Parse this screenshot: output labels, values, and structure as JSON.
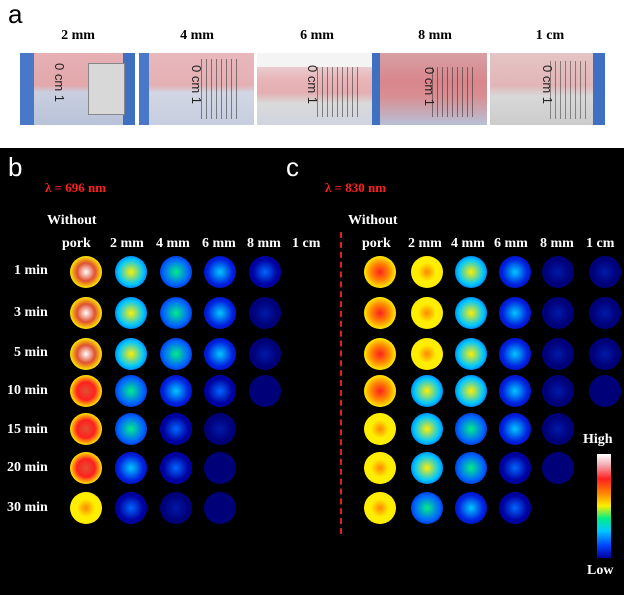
{
  "panel_a": {
    "letter": "a",
    "photos": [
      {
        "label": "2 mm",
        "ruler": "0 cm 1"
      },
      {
        "label": "4 mm",
        "ruler": "0 cm 1"
      },
      {
        "label": "6 mm",
        "ruler": "0 cm 1"
      },
      {
        "label": "8 mm",
        "ruler": "0 cm 1"
      },
      {
        "label": "1 cm",
        "ruler": "0 cm 1"
      }
    ]
  },
  "panel_b": {
    "letter": "b",
    "wavelength": "λ = 696 nm",
    "header_without": "Without",
    "columns": [
      "pork",
      "2 mm",
      "4 mm",
      "6 mm",
      "8 mm",
      "1 cm"
    ]
  },
  "panel_c": {
    "letter": "c",
    "wavelength": "λ = 830 nm",
    "header_without": "Without",
    "columns": [
      "pork",
      "2 mm",
      "4 mm",
      "6 mm",
      "8 mm",
      "1 cm"
    ]
  },
  "time_points": [
    "1 min",
    "3 min",
    "5 min",
    "10 min",
    "15 min",
    "20 min",
    "30 min"
  ],
  "legend": {
    "high": "High",
    "low": "Low"
  },
  "colors": {
    "divider": "#e02020",
    "wavelength_text": "#ff2020",
    "background": "#000000"
  },
  "intensity_scale": [
    "#0000a0",
    "#0022e0",
    "#0066ff",
    "#00c8ff",
    "#00ee88",
    "#ffee00",
    "#ff8800",
    "#ff2020",
    "#e05030",
    "#ffffff"
  ],
  "grid_b": [
    [
      9,
      5,
      4,
      3,
      2,
      null
    ],
    [
      9,
      5,
      4,
      3,
      1,
      null
    ],
    [
      9,
      5,
      4,
      3,
      1,
      null
    ],
    [
      8,
      4,
      3,
      2,
      0,
      null
    ],
    [
      8,
      4,
      2,
      1,
      null,
      null
    ],
    [
      8,
      3,
      2,
      0,
      null,
      null
    ],
    [
      6,
      2,
      1,
      0,
      null,
      null
    ]
  ],
  "grid_c": [
    [
      7,
      6,
      5,
      3,
      1,
      1
    ],
    [
      7,
      6,
      5,
      3,
      1,
      1
    ],
    [
      7,
      6,
      5,
      3,
      1,
      1
    ],
    [
      7,
      5,
      5,
      3,
      1,
      0
    ],
    [
      6,
      5,
      4,
      3,
      1,
      null
    ],
    [
      6,
      5,
      4,
      2,
      0,
      null
    ],
    [
      6,
      4,
      3,
      2,
      null,
      null
    ]
  ]
}
